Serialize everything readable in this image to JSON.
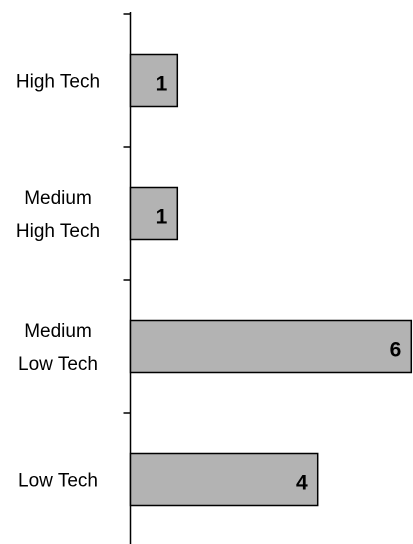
{
  "chart_data": {
    "type": "bar",
    "orientation": "horizontal",
    "categories": [
      [
        "High Tech"
      ],
      [
        "Medium",
        "High Tech"
      ],
      [
        "Medium",
        "Low Tech"
      ],
      [
        "Low Tech"
      ]
    ],
    "values": [
      1,
      1,
      6,
      4
    ],
    "data_labels": [
      "1",
      "1",
      "6",
      "4"
    ],
    "title": "",
    "xlabel": "",
    "ylabel": "",
    "xlim": [
      0,
      6
    ],
    "grid": false,
    "legend": "none",
    "colors": {
      "bar_fill": "#b3b3b3",
      "bar_stroke": "#000000",
      "axis": "#000000",
      "text": "#000000"
    }
  }
}
